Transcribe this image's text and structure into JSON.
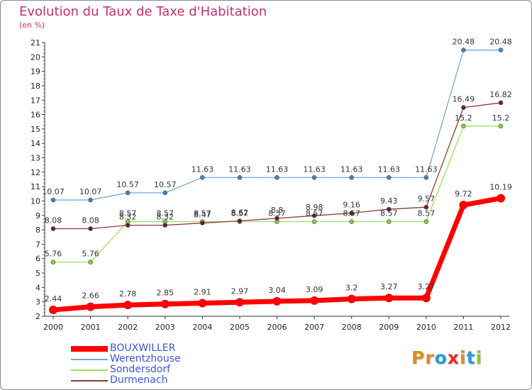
{
  "title": "Evolution du Taux de Taxe d'Habitation",
  "unit_label": "(en %)",
  "logo_text": "Proxiti",
  "colors": {
    "title": "#c0306a",
    "legend_text": "#3c55d6",
    "axis": "#333333",
    "axis_minor_tick": "#c0306a",
    "logo": [
      "#e08a1c",
      "#e08a1c",
      "#2a9ad6",
      "#e0301c",
      "#e08a1c",
      "#2a9ad6",
      "#8ac43c"
    ]
  },
  "chart_data": {
    "type": "line",
    "x": [
      2000,
      2001,
      2002,
      2003,
      2004,
      2005,
      2006,
      2007,
      2008,
      2009,
      2010,
      2011,
      2012
    ],
    "ylim": [
      2,
      21
    ],
    "yticks": [
      2,
      3,
      4,
      5,
      6,
      7,
      8,
      9,
      10,
      11,
      12,
      13,
      14,
      15,
      16,
      17,
      18,
      19,
      20,
      21
    ],
    "grid": false,
    "legend_position": "bottom-left",
    "series": [
      {
        "name": "BOUXWILLER",
        "color": "#ff0000",
        "values": [
          2.44,
          2.66,
          2.78,
          2.85,
          2.91,
          2.97,
          3.04,
          3.09,
          3.2,
          3.27,
          3.27,
          9.72,
          10.19
        ],
        "labels": [
          "2.44",
          "2.66",
          "2.78",
          "2.85",
          "2.91",
          "2.97",
          "3.04",
          "3.09",
          "3.2",
          "3.27",
          "3.27",
          "9.72",
          "10.19"
        ]
      },
      {
        "name": "Werentzhouse",
        "color": "#7ba7d0",
        "marker_color": "#3b86c6",
        "values": [
          10.07,
          10.07,
          10.57,
          10.57,
          11.63,
          11.63,
          11.63,
          11.63,
          11.63,
          11.63,
          11.63,
          20.48,
          20.48
        ],
        "labels": [
          "10.07",
          "10.07",
          "10.57",
          "10.57",
          "11.63",
          "11.63",
          "11.63",
          "11.63",
          "11.63",
          "11.63",
          "11.63",
          "20.48",
          "20.48"
        ]
      },
      {
        "name": "Sondersdorf",
        "color": "#a2de62",
        "marker_color": "#7fcf3a",
        "values": [
          5.76,
          5.76,
          8.57,
          8.57,
          8.57,
          8.57,
          8.57,
          8.57,
          8.57,
          8.57,
          8.57,
          15.2,
          15.2
        ],
        "labels": [
          "5.76",
          "5.76",
          "8.57",
          "8.57",
          "8.57",
          "8.57",
          "8.57",
          "8.57",
          "8.57",
          "8.57",
          "8.57",
          "15.2",
          "15.2"
        ]
      },
      {
        "name": "Durmenach",
        "color": "#8b3a3a",
        "marker_color": "#6b1f1f",
        "values": [
          8.08,
          8.08,
          8.32,
          8.32,
          8.47,
          8.62,
          8.8,
          8.98,
          9.16,
          9.43,
          9.57,
          16.49,
          16.82
        ],
        "labels": [
          "8.08",
          "8.08",
          "8.32",
          "8.32",
          "8.47",
          "8.62",
          "8.8",
          "8.98",
          "9.16",
          "9.43",
          "9.57",
          "16.49",
          "16.82"
        ]
      }
    ]
  }
}
